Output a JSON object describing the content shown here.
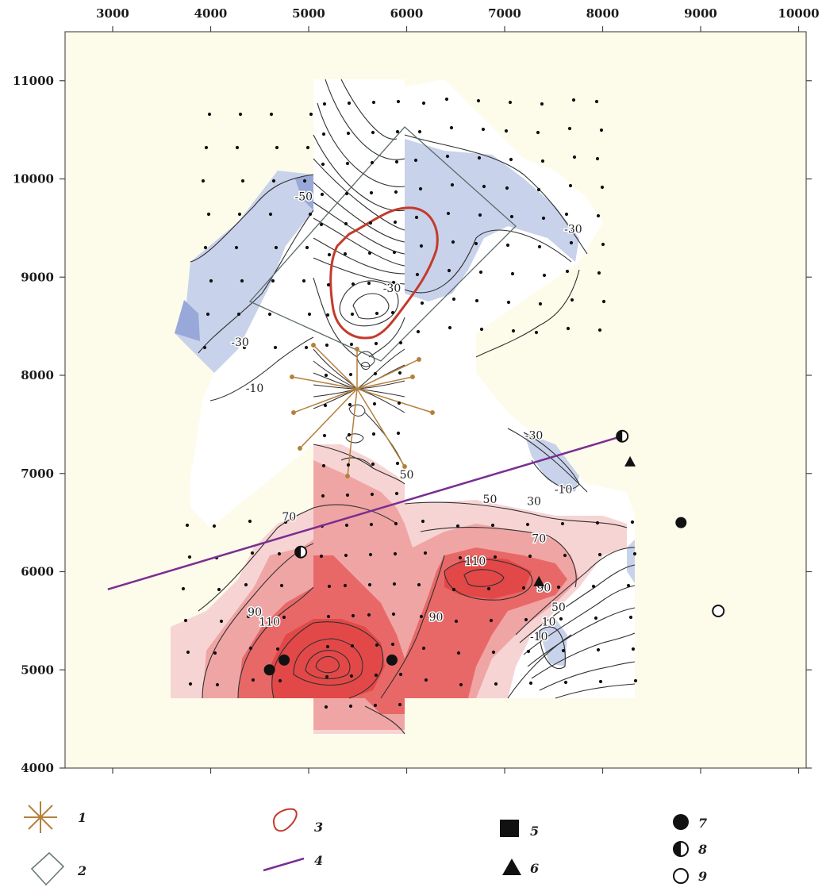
{
  "axes": {
    "x_ticks": [
      "3000",
      "4000",
      "5000",
      "6000",
      "7000",
      "8000",
      "9000",
      "10000"
    ],
    "y_ticks": [
      "4000",
      "5000",
      "6000",
      "7000",
      "8000",
      "9000",
      "10000",
      "11000"
    ],
    "xlim": [
      2500,
      10000
    ],
    "ylim": [
      4000,
      11500
    ]
  },
  "contour_labels": [
    {
      "text": "-50",
      "x": 4950,
      "y": 9780
    },
    {
      "text": "-30",
      "x": 4300,
      "y": 8300
    },
    {
      "text": "-10",
      "x": 4450,
      "y": 7830
    },
    {
      "text": "-30",
      "x": 5850,
      "y": 8850
    },
    {
      "text": "-30",
      "x": 7700,
      "y": 9450
    },
    {
      "text": "-30",
      "x": 7300,
      "y": 7350
    },
    {
      "text": "-10",
      "x": 7600,
      "y": 6800
    },
    {
      "text": "50",
      "x": 6000,
      "y": 6950
    },
    {
      "text": "50",
      "x": 6850,
      "y": 6700
    },
    {
      "text": "30",
      "x": 7300,
      "y": 6680
    },
    {
      "text": "70",
      "x": 4800,
      "y": 6520
    },
    {
      "text": "70",
      "x": 7350,
      "y": 6300
    },
    {
      "text": "110",
      "x": 6700,
      "y": 6070
    },
    {
      "text": "90",
      "x": 7400,
      "y": 5800
    },
    {
      "text": "50",
      "x": 7550,
      "y": 5600
    },
    {
      "text": "10",
      "x": 7450,
      "y": 5450
    },
    {
      "text": "-10",
      "x": 7350,
      "y": 5300
    },
    {
      "text": "90",
      "x": 6300,
      "y": 5500
    },
    {
      "text": "90",
      "x": 4450,
      "y": 5550
    },
    {
      "text": "110",
      "x": 4600,
      "y": 5450
    }
  ],
  "legend": {
    "items": [
      {
        "num": "1",
        "symbol": "asterisk"
      },
      {
        "num": "2",
        "symbol": "diamond"
      },
      {
        "num": "3",
        "symbol": "red-loop"
      },
      {
        "num": "4",
        "symbol": "purple-line"
      },
      {
        "num": "5",
        "symbol": "square"
      },
      {
        "num": "6",
        "symbol": "triangle"
      },
      {
        "num": "7",
        "symbol": "filled-circle"
      },
      {
        "num": "8",
        "symbol": "half-circle"
      },
      {
        "num": "9",
        "symbol": "open-circle"
      }
    ]
  },
  "point_markers": [
    {
      "type": "filled-circle",
      "x": 8800,
      "y": 6500
    },
    {
      "type": "half-circle",
      "x": 8200,
      "y": 7380
    },
    {
      "type": "triangle",
      "x": 8280,
      "y": 7120
    },
    {
      "type": "open-circle",
      "x": 9180,
      "y": 5600
    },
    {
      "type": "triangle",
      "x": 7350,
      "y": 5900
    },
    {
      "type": "half-circle",
      "x": 4920,
      "y": 6200
    },
    {
      "type": "filled-circle",
      "x": 4600,
      "y": 5000
    },
    {
      "type": "filled-circle",
      "x": 4750,
      "y": 5100
    },
    {
      "type": "filled-circle",
      "x": 5850,
      "y": 5100
    }
  ],
  "profile_line": {
    "x1": 2950,
    "y1": 5820,
    "x2": 8200,
    "y2": 7380
  },
  "colors": {
    "map_bg": "#fdfbea",
    "negative": "#c8d2ea",
    "negative_deep": "#98a8d8",
    "positive_light": "#f7d4d4",
    "positive_mid": "#f0a5a5",
    "positive_strong": "#e86868",
    "positive_peak": "#e34848",
    "anomaly_outline": "#c43a2c",
    "profile": "#7a2e91",
    "rays": "#b5803c"
  }
}
